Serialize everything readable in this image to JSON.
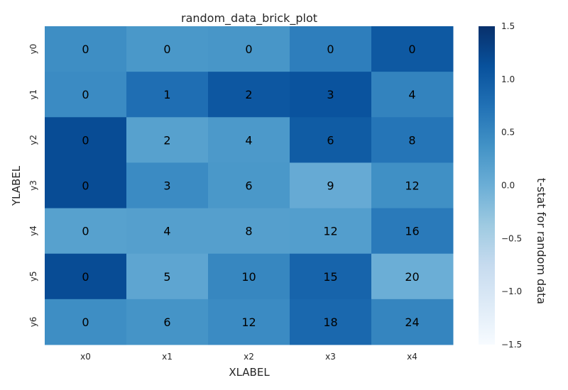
{
  "chart_data": {
    "type": "heatmap",
    "title": "random_data_brick_plot",
    "xlabel": "XLABEL",
    "ylabel": "YLABEL",
    "x_categories": [
      "x0",
      "x1",
      "x2",
      "x3",
      "x4"
    ],
    "y_categories": [
      "y0",
      "y1",
      "y2",
      "y3",
      "y4",
      "y5",
      "y6"
    ],
    "annotations": [
      [
        "0",
        "0",
        "0",
        "0",
        "0"
      ],
      [
        "0",
        "1",
        "2",
        "3",
        "4"
      ],
      [
        "0",
        "2",
        "4",
        "6",
        "8"
      ],
      [
        "0",
        "3",
        "6",
        "9",
        "12"
      ],
      [
        "0",
        "4",
        "8",
        "12",
        "16"
      ],
      [
        "0",
        "5",
        "10",
        "15",
        "20"
      ],
      [
        "0",
        "6",
        "12",
        "18",
        "24"
      ]
    ],
    "values": [
      [
        0.42,
        0.3,
        0.32,
        0.6,
        1.03
      ],
      [
        0.45,
        0.78,
        1.05,
        1.1,
        0.55
      ],
      [
        1.18,
        0.18,
        0.28,
        1.0,
        0.7
      ],
      [
        1.18,
        0.45,
        0.3,
        0.05,
        0.4
      ],
      [
        0.18,
        0.2,
        0.2,
        0.22,
        0.65
      ],
      [
        1.18,
        0.12,
        0.5,
        0.9,
        0.0
      ],
      [
        0.42,
        0.35,
        0.45,
        0.85,
        0.52
      ]
    ],
    "colorbar": {
      "label": "t-stat for random data",
      "min": -1.5,
      "max": 1.5,
      "ticks": [
        1.5,
        1.0,
        0.5,
        0.0,
        -0.5,
        -1.0,
        -1.5
      ],
      "tick_labels": [
        "1.5",
        "1.0",
        "0.5",
        "0.0",
        "−0.5",
        "−1.0",
        "−1.5"
      ],
      "colormap": "Blues"
    }
  }
}
